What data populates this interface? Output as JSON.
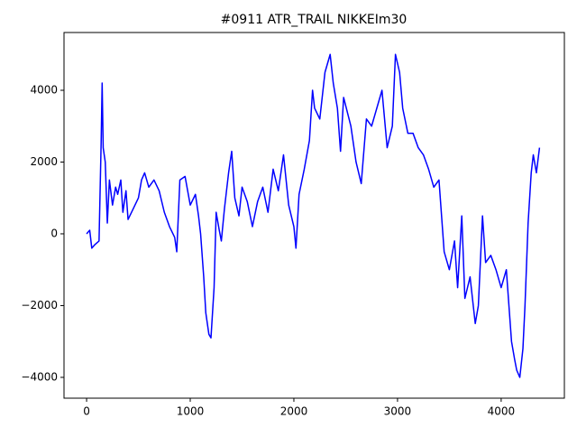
{
  "chart_data": {
    "type": "line",
    "title": "#0911 ATR_TRAIL NIKKEIm30",
    "x": [
      0,
      30,
      50,
      80,
      120,
      140,
      150,
      160,
      180,
      200,
      220,
      250,
      280,
      300,
      330,
      350,
      380,
      400,
      450,
      500,
      530,
      560,
      600,
      650,
      700,
      750,
      800,
      850,
      870,
      900,
      950,
      1000,
      1050,
      1080,
      1100,
      1130,
      1150,
      1180,
      1200,
      1230,
      1250,
      1280,
      1300,
      1330,
      1370,
      1400,
      1430,
      1470,
      1500,
      1550,
      1600,
      1650,
      1700,
      1750,
      1800,
      1850,
      1900,
      1950,
      2000,
      2020,
      2050,
      2100,
      2150,
      2180,
      2200,
      2250,
      2300,
      2350,
      2380,
      2420,
      2450,
      2480,
      2550,
      2600,
      2650,
      2700,
      2750,
      2800,
      2850,
      2900,
      2950,
      2980,
      3020,
      3050,
      3100,
      3150,
      3200,
      3250,
      3300,
      3350,
      3400,
      3450,
      3500,
      3550,
      3580,
      3620,
      3650,
      3700,
      3750,
      3780,
      3820,
      3850,
      3900,
      3950,
      4000,
      4050,
      4080,
      4100,
      4130,
      4150,
      4180,
      4210,
      4230,
      4260,
      4290,
      4310,
      4340,
      4370
    ],
    "series": [
      {
        "color": "#0000ff",
        "values": [
          0,
          100,
          -400,
          -300,
          -200,
          2500,
          4200,
          2400,
          2000,
          300,
          1500,
          800,
          1300,
          1100,
          1500,
          600,
          1200,
          400,
          700,
          1000,
          1500,
          1700,
          1300,
          1500,
          1200,
          600,
          200,
          -100,
          -500,
          1500,
          1600,
          800,
          1100,
          500,
          0,
          -1200,
          -2200,
          -2800,
          -2900,
          -1500,
          600,
          100,
          -200,
          700,
          1700,
          2300,
          1000,
          500,
          1300,
          900,
          200,
          900,
          1300,
          600,
          1800,
          1200,
          2200,
          800,
          200,
          -400,
          1100,
          1800,
          2600,
          4000,
          3500,
          3200,
          4500,
          5000,
          4200,
          3500,
          2300,
          3800,
          3000,
          2000,
          1400,
          3200,
          3000,
          3500,
          4000,
          2400,
          3000,
          5000,
          4500,
          3500,
          2800,
          2800,
          2400,
          2200,
          1800,
          1300,
          1500,
          -500,
          -1000,
          -200,
          -1500,
          500,
          -1800,
          -1200,
          -2500,
          -2000,
          500,
          -800,
          -600,
          -1000,
          -1500,
          -1000,
          -2200,
          -3000,
          -3500,
          -3800,
          -4000,
          -3200,
          -2000,
          300,
          1700,
          2200,
          1700,
          2400
        ]
      }
    ],
    "xlim": [
      -218,
      4610
    ],
    "xticks": [
      0,
      1000,
      2000,
      3000,
      4000
    ],
    "ylim": [
      -4580,
      5610
    ],
    "yticks": [
      {
        "value": -4000,
        "label": "−4000"
      },
      {
        "value": -2000,
        "label": "−2000"
      },
      0,
      2000,
      4000
    ]
  }
}
